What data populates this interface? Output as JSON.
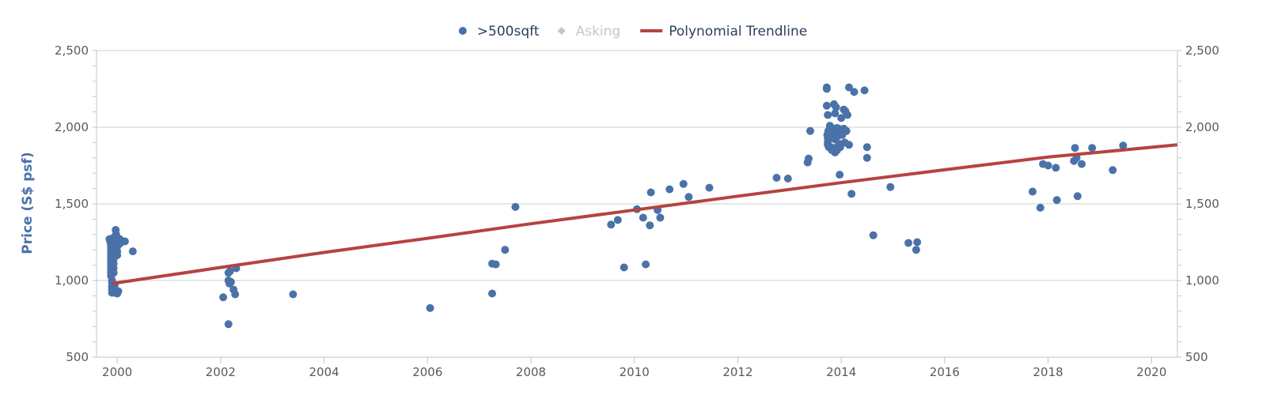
{
  "legend": [
    {
      "label": ">500sqft",
      "color": "#4a72a8",
      "marker": "circle",
      "dimmed": false
    },
    {
      "label": "Asking",
      "color": "#c6c6c6",
      "marker": "diamond",
      "dimmed": true
    },
    {
      "label": "Polynomial Trendline",
      "color": "#b5433f",
      "marker": "line",
      "dimmed": false
    }
  ],
  "chart_data": {
    "type": "scatter",
    "ylabel": "Price (S$ psf)",
    "xlabel": "",
    "xlim": [
      1999.6,
      2020.5
    ],
    "ylim": [
      500,
      2500
    ],
    "x_ticks": [
      "2000",
      "2002",
      "2004",
      "2006",
      "2008",
      "2010",
      "2012",
      "2014",
      "2016",
      "2018",
      "2020"
    ],
    "y_ticks_left": [
      "500",
      "1,000",
      "1,500",
      "2,000",
      "2,500"
    ],
    "y_ticks_right": [
      "500",
      "1,000",
      "1,500",
      "2,000",
      "2,500"
    ],
    "grid": true,
    "legend_position": "top-center",
    "series": [
      {
        "name": ">500sqft",
        "type": "scatter",
        "color": "#4a72a8",
        "points": [
          [
            1999.85,
            1270
          ],
          [
            1999.87,
            1250
          ],
          [
            1999.88,
            1230
          ],
          [
            1999.88,
            1210
          ],
          [
            1999.88,
            1190
          ],
          [
            1999.88,
            1170
          ],
          [
            1999.88,
            1150
          ],
          [
            1999.88,
            1130
          ],
          [
            1999.88,
            1110
          ],
          [
            1999.88,
            1090
          ],
          [
            1999.88,
            1070
          ],
          [
            1999.88,
            1050
          ],
          [
            1999.88,
            1030
          ],
          [
            1999.9,
            1000
          ],
          [
            1999.9,
            985
          ],
          [
            1999.9,
            960
          ],
          [
            1999.9,
            940
          ],
          [
            1999.9,
            920
          ],
          [
            1999.93,
            1280
          ],
          [
            1999.93,
            1260
          ],
          [
            1999.93,
            1240
          ],
          [
            1999.93,
            1220
          ],
          [
            1999.93,
            1200
          ],
          [
            1999.93,
            1180
          ],
          [
            1999.93,
            1160
          ],
          [
            1999.93,
            1140
          ],
          [
            1999.93,
            1110
          ],
          [
            1999.93,
            1080
          ],
          [
            1999.93,
            1050
          ],
          [
            1999.95,
            970
          ],
          [
            1999.95,
            945
          ],
          [
            1999.95,
            920
          ],
          [
            1999.97,
            1330
          ],
          [
            1999.98,
            1300
          ],
          [
            1999.98,
            1280
          ],
          [
            2000.0,
            1250
          ],
          [
            2000.0,
            1220
          ],
          [
            2000.0,
            1190
          ],
          [
            2000.0,
            915
          ],
          [
            2000.02,
            930
          ],
          [
            2000.05,
            1270
          ],
          [
            2000.05,
            1240
          ],
          [
            2000.0,
            1165
          ],
          [
            2000.1,
            1255
          ],
          [
            2000.15,
            1255
          ],
          [
            2000.3,
            1190
          ],
          [
            2002.05,
            890
          ],
          [
            2002.15,
            1050
          ],
          [
            2002.18,
            1060
          ],
          [
            2002.15,
            1000
          ],
          [
            2002.17,
            980
          ],
          [
            2002.2,
            990
          ],
          [
            2002.15,
            715
          ],
          [
            2002.25,
            940
          ],
          [
            2002.28,
            910
          ],
          [
            2002.3,
            1080
          ],
          [
            2003.4,
            910
          ],
          [
            2006.05,
            820
          ],
          [
            2007.25,
            915
          ],
          [
            2007.25,
            1110
          ],
          [
            2007.32,
            1105
          ],
          [
            2007.5,
            1200
          ],
          [
            2007.7,
            1480
          ],
          [
            2009.55,
            1365
          ],
          [
            2009.68,
            1395
          ],
          [
            2009.8,
            1085
          ],
          [
            2010.05,
            1465
          ],
          [
            2010.17,
            1410
          ],
          [
            2010.22,
            1105
          ],
          [
            2010.3,
            1360
          ],
          [
            2010.32,
            1575
          ],
          [
            2010.45,
            1460
          ],
          [
            2010.5,
            1410
          ],
          [
            2010.68,
            1595
          ],
          [
            2010.95,
            1630
          ],
          [
            2011.05,
            1545
          ],
          [
            2011.45,
            1605
          ],
          [
            2012.75,
            1670
          ],
          [
            2012.97,
            1665
          ],
          [
            2013.35,
            1770
          ],
          [
            2013.37,
            1795
          ],
          [
            2013.4,
            1975
          ],
          [
            2013.72,
            2260
          ],
          [
            2013.72,
            2250
          ],
          [
            2013.72,
            2140
          ],
          [
            2013.74,
            2080
          ],
          [
            2013.75,
            1975
          ],
          [
            2013.73,
            1950
          ],
          [
            2013.74,
            1930
          ],
          [
            2013.74,
            1905
          ],
          [
            2013.74,
            1885
          ],
          [
            2013.76,
            1870
          ],
          [
            2013.78,
            2010
          ],
          [
            2013.8,
            2000
          ],
          [
            2013.8,
            1990
          ],
          [
            2013.8,
            1940
          ],
          [
            2013.8,
            1870
          ],
          [
            2013.82,
            1850
          ],
          [
            2013.85,
            1990
          ],
          [
            2013.85,
            1950
          ],
          [
            2013.86,
            2150
          ],
          [
            2013.88,
            2090
          ],
          [
            2013.88,
            1940
          ],
          [
            2013.88,
            1920
          ],
          [
            2013.88,
            1835
          ],
          [
            2013.88,
            1860
          ],
          [
            2013.9,
            2130
          ],
          [
            2013.92,
            1995
          ],
          [
            2013.92,
            1955
          ],
          [
            2013.92,
            1870
          ],
          [
            2013.92,
            1850
          ],
          [
            2013.95,
            1945
          ],
          [
            2013.95,
            1990
          ],
          [
            2013.97,
            1690
          ],
          [
            2013.97,
            1890
          ],
          [
            2013.98,
            1870
          ],
          [
            2014.0,
            2060
          ],
          [
            2014.0,
            1985
          ],
          [
            2014.02,
            1950
          ],
          [
            2014.05,
            2115
          ],
          [
            2014.05,
            1990
          ],
          [
            2014.07,
            1900
          ],
          [
            2014.08,
            2105
          ],
          [
            2014.1,
            1975
          ],
          [
            2014.12,
            2080
          ],
          [
            2014.15,
            2260
          ],
          [
            2014.15,
            1885
          ],
          [
            2014.2,
            1565
          ],
          [
            2014.25,
            2230
          ],
          [
            2014.45,
            2240
          ],
          [
            2014.5,
            1870
          ],
          [
            2014.5,
            1800
          ],
          [
            2014.62,
            1295
          ],
          [
            2014.95,
            1610
          ],
          [
            2015.3,
            1245
          ],
          [
            2015.45,
            1200
          ],
          [
            2015.47,
            1250
          ],
          [
            2017.7,
            1580
          ],
          [
            2017.85,
            1475
          ],
          [
            2017.9,
            1760
          ],
          [
            2018.0,
            1750
          ],
          [
            2018.15,
            1735
          ],
          [
            2018.17,
            1525
          ],
          [
            2018.5,
            1780
          ],
          [
            2018.52,
            1865
          ],
          [
            2018.55,
            1800
          ],
          [
            2018.57,
            1550
          ],
          [
            2018.65,
            1760
          ],
          [
            2018.85,
            1865
          ],
          [
            2019.25,
            1720
          ],
          [
            2019.45,
            1880
          ]
        ]
      },
      {
        "name": "Asking",
        "type": "scatter",
        "color": "#c6c6c6",
        "points": []
      },
      {
        "name": "Polynomial Trendline",
        "type": "line",
        "color": "#b5433f",
        "points": [
          [
            1999.9,
            980
          ],
          [
            2002,
            1085
          ],
          [
            2004,
            1183
          ],
          [
            2006,
            1275
          ],
          [
            2008,
            1370
          ],
          [
            2010,
            1460
          ],
          [
            2012,
            1550
          ],
          [
            2014,
            1638
          ],
          [
            2016,
            1722
          ],
          [
            2018,
            1805
          ],
          [
            2020.5,
            1885
          ]
        ]
      }
    ]
  }
}
